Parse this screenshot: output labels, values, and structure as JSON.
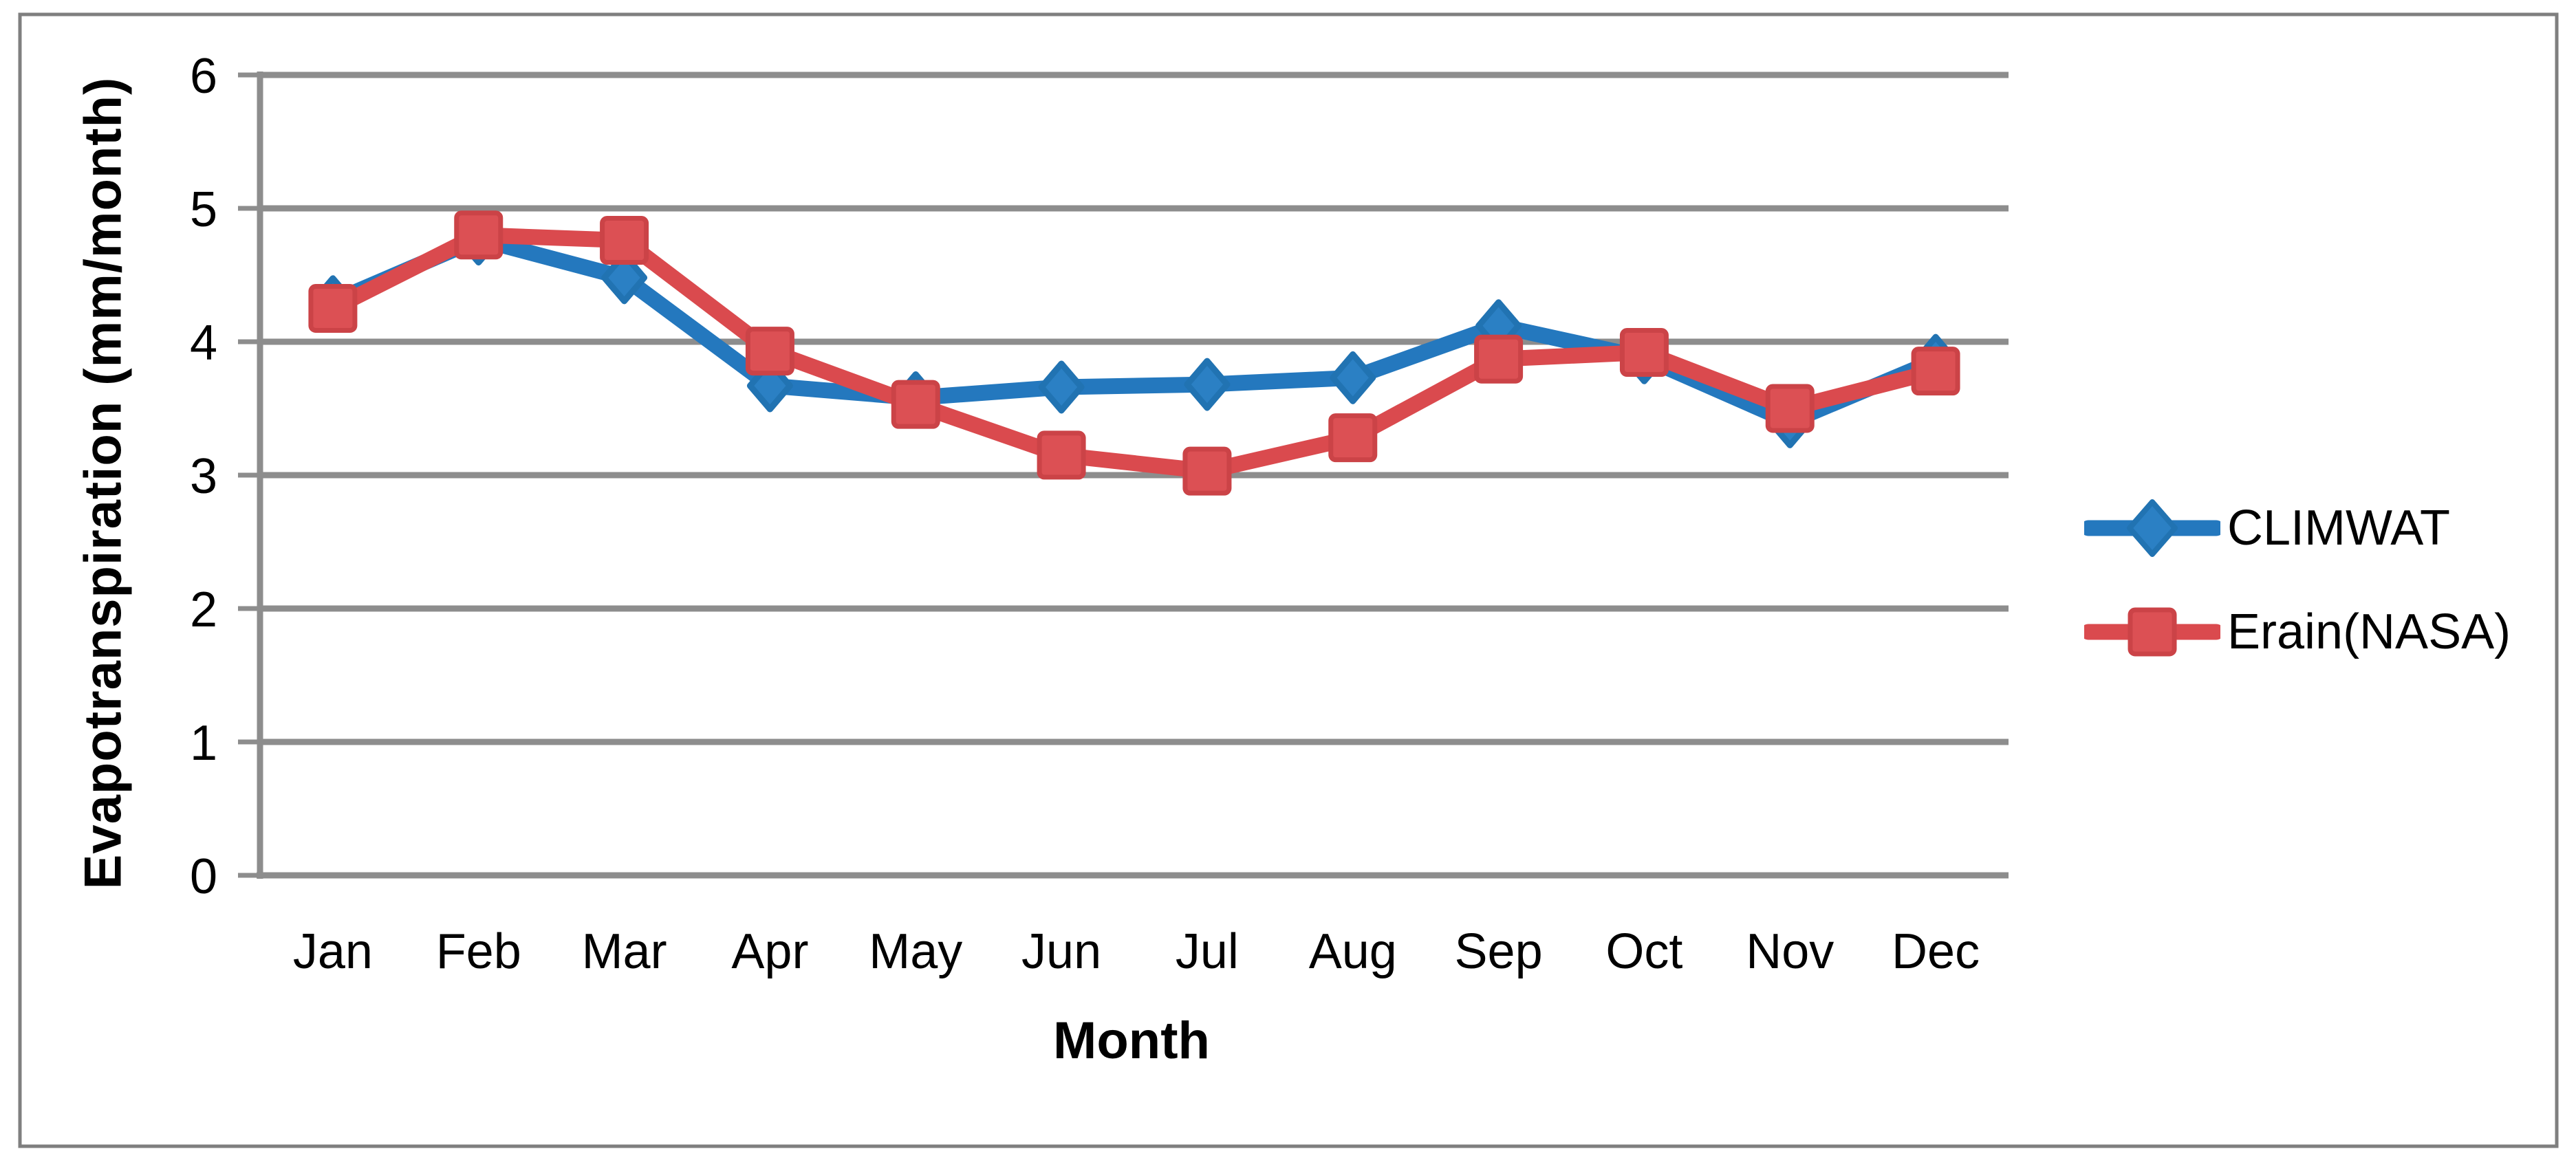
{
  "chart_data": {
    "type": "line",
    "title": "",
    "categories": [
      "Jan",
      "Feb",
      "Mar",
      "Apr",
      "May",
      "Jun",
      "Jul",
      "Aug",
      "Sep",
      "Oct",
      "Nov",
      "Dec"
    ],
    "series": [
      {
        "name": "CLIMWAT",
        "marker": "diamond",
        "color": "#2478BE",
        "marker_fill": "#2B80C4",
        "marker_stroke": "#2173B2",
        "values": [
          4.3,
          4.77,
          4.48,
          3.67,
          3.58,
          3.66,
          3.68,
          3.73,
          4.12,
          3.88,
          3.4,
          3.86
        ]
      },
      {
        "name": "Erain(NASA)",
        "marker": "square",
        "color": "#DA4A4E",
        "marker_fill": "#DC5054",
        "marker_stroke": "#CB4347",
        "values": [
          4.25,
          4.8,
          4.76,
          3.93,
          3.53,
          3.15,
          3.03,
          3.28,
          3.87,
          3.92,
          3.5,
          3.78
        ]
      }
    ],
    "xlabel": "Month",
    "ylabel": "Evapotranspiration (mm/month)",
    "ylim": [
      0,
      6
    ],
    "y_ticks": [
      "0",
      "1",
      "2",
      "3",
      "4",
      "5",
      "6"
    ],
    "grid": "on",
    "legend_position": "right",
    "colors": {
      "gridline": "#8D8D8D",
      "axis": "#8D8D8D",
      "figure_border": "#7F7F7F",
      "text": "#000000",
      "background": "#FFFFFF"
    }
  }
}
